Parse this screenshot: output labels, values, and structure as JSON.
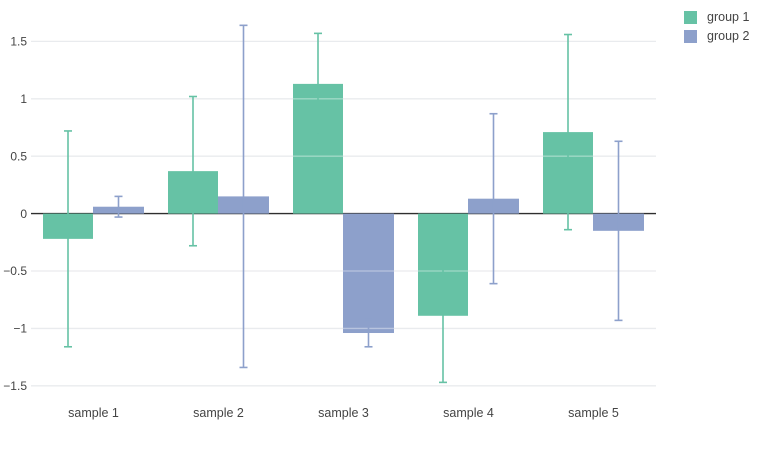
{
  "chart_data": {
    "type": "bar",
    "title": "",
    "xlabel": "",
    "ylabel": "",
    "categories": [
      "sample 1",
      "sample 2",
      "sample 3",
      "sample 4",
      "sample 5"
    ],
    "series": [
      {
        "name": "group 1",
        "color": "#66c2a5",
        "values": [
          -0.22,
          0.37,
          1.13,
          -0.89,
          0.71
        ],
        "error_y": [
          0.94,
          0.65,
          0.44,
          0.58,
          0.85
        ]
      },
      {
        "name": "group 2",
        "color": "#8da0cb",
        "values": [
          0.06,
          0.15,
          -1.04,
          0.13,
          -0.15
        ],
        "error_y": [
          0.09,
          1.49,
          0.12,
          0.74,
          0.78
        ]
      }
    ],
    "yticks": [
      -1.5,
      -1,
      -0.5,
      0,
      0.5,
      1,
      1.5
    ],
    "ylim": [
      -1.58,
      1.73
    ],
    "grid": true,
    "error_bars": true,
    "legend_position": "top-right-outside",
    "bar_mode": "grouped"
  },
  "styles": {
    "grid_color": "#e9ebee",
    "zero_line_color": "#2f2f2f",
    "text_color": "#444444",
    "background": "#ffffff"
  }
}
